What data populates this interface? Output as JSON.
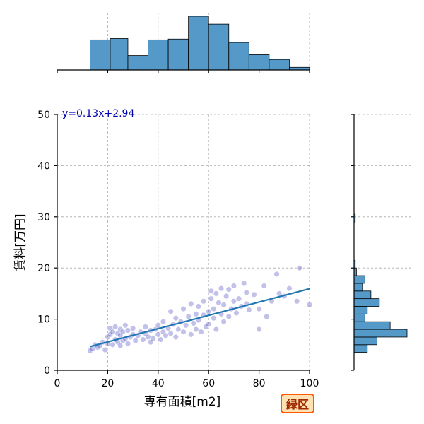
{
  "badge": {
    "label": "緑区",
    "bg_color": "#ffe2b3",
    "border_color": "#ff5a00",
    "text_color": "#a02800"
  },
  "colors": {
    "bar_fill": "#5499c7",
    "regression_line": "#1f77b4",
    "point": "#2020b0",
    "equation_text": "#0000b4",
    "grid": "#aaaaaa"
  },
  "chart_data": {
    "type": "scatter",
    "subtype": "joint plot with marginal histograms and linear regression",
    "xlabel": "専有面積[m2]",
    "ylabel": "賃料[万円]",
    "xlim": [
      0,
      100
    ],
    "ylim": [
      0,
      50
    ],
    "xticks": [
      0,
      20,
      40,
      60,
      80,
      100
    ],
    "yticks": [
      0,
      10,
      20,
      30,
      40,
      50
    ],
    "grid": true,
    "regression": {
      "slope": 0.13,
      "intercept": 2.94,
      "x_range": [
        13,
        100
      ],
      "label": "y=0.13x+2.94"
    },
    "points": [
      [
        13,
        3.8
      ],
      [
        14,
        4.2
      ],
      [
        15,
        5.0
      ],
      [
        16,
        4.5
      ],
      [
        17,
        4.8
      ],
      [
        18,
        5.5
      ],
      [
        19,
        4.0
      ],
      [
        20,
        5.2
      ],
      [
        20,
        6.5
      ],
      [
        21,
        7.0
      ],
      [
        21,
        8.2
      ],
      [
        22,
        5.0
      ],
      [
        22,
        7.5
      ],
      [
        23,
        6.0
      ],
      [
        23,
        8.5
      ],
      [
        24,
        5.5
      ],
      [
        24,
        7.2
      ],
      [
        25,
        4.8
      ],
      [
        25,
        6.8
      ],
      [
        25,
        8.0
      ],
      [
        26,
        5.8
      ],
      [
        26,
        7.5
      ],
      [
        27,
        6.2
      ],
      [
        27,
        8.8
      ],
      [
        28,
        5.2
      ],
      [
        28,
        7.8
      ],
      [
        29,
        6.5
      ],
      [
        30,
        7.0
      ],
      [
        30,
        8.2
      ],
      [
        31,
        5.8
      ],
      [
        32,
        6.8
      ],
      [
        33,
        7.5
      ],
      [
        34,
        6.0
      ],
      [
        35,
        7.2
      ],
      [
        35,
        8.5
      ],
      [
        36,
        6.5
      ],
      [
        37,
        5.5
      ],
      [
        37,
        7.8
      ],
      [
        38,
        6.2
      ],
      [
        39,
        8.0
      ],
      [
        40,
        7.0
      ],
      [
        40,
        8.8
      ],
      [
        41,
        6.0
      ],
      [
        42,
        7.5
      ],
      [
        42,
        9.5
      ],
      [
        43,
        6.8
      ],
      [
        44,
        8.2
      ],
      [
        45,
        7.2
      ],
      [
        45,
        11.5
      ],
      [
        46,
        9.0
      ],
      [
        47,
        6.5
      ],
      [
        47,
        10.2
      ],
      [
        48,
        8.0
      ],
      [
        49,
        9.5
      ],
      [
        50,
        7.5
      ],
      [
        50,
        12.0
      ],
      [
        51,
        8.8
      ],
      [
        52,
        10.5
      ],
      [
        53,
        7.0
      ],
      [
        53,
        13.0
      ],
      [
        54,
        9.2
      ],
      [
        55,
        8.0
      ],
      [
        55,
        11.0
      ],
      [
        56,
        12.5
      ],
      [
        56,
        9.8
      ],
      [
        57,
        7.5
      ],
      [
        58,
        10.8
      ],
      [
        58,
        13.5
      ],
      [
        59,
        8.5
      ],
      [
        60,
        11.5
      ],
      [
        60,
        9.0
      ],
      [
        61,
        14.0
      ],
      [
        61,
        15.5
      ],
      [
        62,
        10.2
      ],
      [
        62,
        12.0
      ],
      [
        63,
        15.0
      ],
      [
        63,
        8.0
      ],
      [
        64,
        13.2
      ],
      [
        65,
        11.0
      ],
      [
        65,
        16.0
      ],
      [
        66,
        9.5
      ],
      [
        66,
        12.8
      ],
      [
        67,
        14.5
      ],
      [
        68,
        10.5
      ],
      [
        68,
        15.8
      ],
      [
        69,
        12.0
      ],
      [
        70,
        13.5
      ],
      [
        70,
        16.5
      ],
      [
        71,
        11.2
      ],
      [
        72,
        14.0
      ],
      [
        73,
        12.5
      ],
      [
        74,
        17.0
      ],
      [
        75,
        15.2
      ],
      [
        75,
        13.0
      ],
      [
        76,
        11.8
      ],
      [
        78,
        14.8
      ],
      [
        80,
        8.0
      ],
      [
        80,
        12.0
      ],
      [
        82,
        16.5
      ],
      [
        83,
        10.5
      ],
      [
        85,
        13.5
      ],
      [
        87,
        18.8
      ],
      [
        88,
        15.0
      ],
      [
        90,
        14.5
      ],
      [
        92,
        16.0
      ],
      [
        95,
        13.5
      ],
      [
        96,
        20.0
      ],
      [
        100,
        12.8
      ]
    ],
    "x_histogram": {
      "bins": [
        [
          13,
          21
        ],
        [
          21,
          28
        ],
        [
          28,
          36
        ],
        [
          36,
          44
        ],
        [
          44,
          52
        ],
        [
          52,
          60
        ],
        [
          60,
          68
        ],
        [
          68,
          76
        ],
        [
          76,
          84
        ],
        [
          84,
          92
        ],
        [
          92,
          100
        ]
      ],
      "counts": [
        11.5,
        12.0,
        5.5,
        11.5,
        11.8,
        20.5,
        17.5,
        10.5,
        5.8,
        4.0,
        1.0
      ]
    },
    "y_histogram": {
      "bins": [
        [
          3.5,
          5.0
        ],
        [
          5.0,
          6.5
        ],
        [
          6.5,
          8.0
        ],
        [
          8.0,
          9.5
        ],
        [
          9.5,
          11.0
        ],
        [
          11.0,
          12.5
        ],
        [
          12.5,
          14.0
        ],
        [
          14.0,
          15.5
        ],
        [
          15.5,
          17.0
        ],
        [
          17.0,
          18.5
        ],
        [
          18.5,
          20.0
        ],
        [
          20.0,
          21.5
        ],
        [
          29.0,
          30.5
        ]
      ],
      "counts": [
        5.5,
        9.5,
        22.0,
        15.0,
        4.5,
        5.5,
        10.5,
        7.0,
        3.5,
        4.5,
        1.0,
        0.5,
        0.5
      ]
    }
  }
}
